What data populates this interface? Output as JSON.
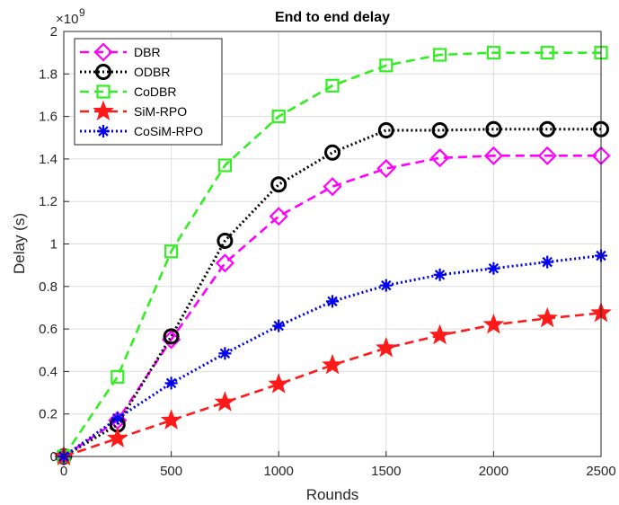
{
  "chart_data": {
    "type": "line",
    "title": "End to end delay",
    "xlabel": "Rounds",
    "ylabel": "Delay (s)",
    "y_exponent_base": "×10",
    "y_exponent_power": "9",
    "xlim": [
      0,
      2500
    ],
    "ylim": [
      0,
      2
    ],
    "xticks": [
      0,
      500,
      1000,
      1500,
      2000,
      2500
    ],
    "yticks": [
      0,
      0.2,
      0.4,
      0.6,
      0.8,
      1,
      1.2,
      1.4,
      1.6,
      1.8,
      2
    ],
    "grid": true,
    "legend_position": "top-left",
    "x": [
      0,
      250,
      500,
      750,
      1000,
      1250,
      1500,
      1750,
      2000,
      2250,
      2500
    ],
    "series": [
      {
        "name": "DBR",
        "color": "#ff00ff",
        "dash": "dashed",
        "marker": "diamond",
        "values": [
          0,
          0.17,
          0.55,
          0.91,
          1.13,
          1.27,
          1.355,
          1.405,
          1.415,
          1.415,
          1.415
        ]
      },
      {
        "name": "ODBR",
        "color": "#000000",
        "dash": "dotted",
        "marker": "circle",
        "values": [
          0,
          0.15,
          0.565,
          1.015,
          1.28,
          1.43,
          1.535,
          1.535,
          1.54,
          1.54,
          1.54
        ]
      },
      {
        "name": "CoDBR",
        "color": "#33ee22",
        "dash": "dashed",
        "marker": "square",
        "values": [
          0,
          0.375,
          0.965,
          1.37,
          1.6,
          1.745,
          1.84,
          1.89,
          1.9,
          1.9,
          1.9
        ]
      },
      {
        "name": "SiM-RPO",
        "color": "#ff1a1a",
        "dash": "dashed",
        "marker": "star",
        "values": [
          0,
          0.085,
          0.17,
          0.255,
          0.34,
          0.43,
          0.51,
          0.57,
          0.62,
          0.65,
          0.675
        ]
      },
      {
        "name": "CoSiM-RPO",
        "color": "#0000ee",
        "dash": "dotted",
        "marker": "asterisk",
        "values": [
          0,
          0.18,
          0.345,
          0.485,
          0.615,
          0.73,
          0.805,
          0.855,
          0.885,
          0.915,
          0.945
        ]
      }
    ]
  }
}
